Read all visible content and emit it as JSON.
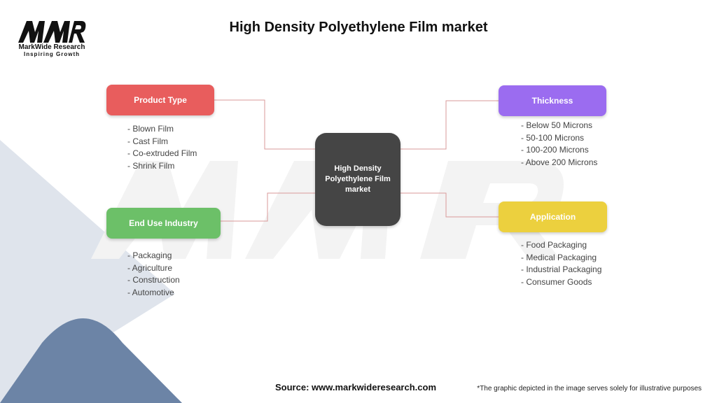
{
  "header": {
    "title": "High Density Polyethylene Film market"
  },
  "logo": {
    "mark": "MWR",
    "name": "MarkWide Research",
    "tagline": "Inspiring Growth"
  },
  "center": {
    "label": "High Density Polyethylene Film market"
  },
  "colors": {
    "product_type": "#e85d5d",
    "end_use": "#6cc068",
    "thickness": "#9b6cf0",
    "application": "#ecd03e",
    "center": "#454545",
    "connector": "#d99a9a"
  },
  "categories": [
    {
      "label": "Product Type",
      "items": [
        "- Blown Film",
        "- Cast Film",
        "- Co-extruded Film",
        "- Shrink Film"
      ]
    },
    {
      "label": "End Use Industry",
      "items": [
        "- Packaging",
        "- Agriculture",
        "- Construction",
        "- Automotive"
      ]
    },
    {
      "label": "Thickness",
      "items": [
        "- Below 50 Microns",
        "- 50-100 Microns",
        "- 100-200 Microns",
        "- Above 200 Microns"
      ]
    },
    {
      "label": "Application",
      "items": [
        "- Food Packaging",
        "- Medical Packaging",
        "- Industrial Packaging",
        "- Consumer Goods"
      ]
    }
  ],
  "footer": {
    "source": "Source: www.markwideresearch.com",
    "note": "*The graphic depicted in the image serves solely for illustrative purposes"
  }
}
